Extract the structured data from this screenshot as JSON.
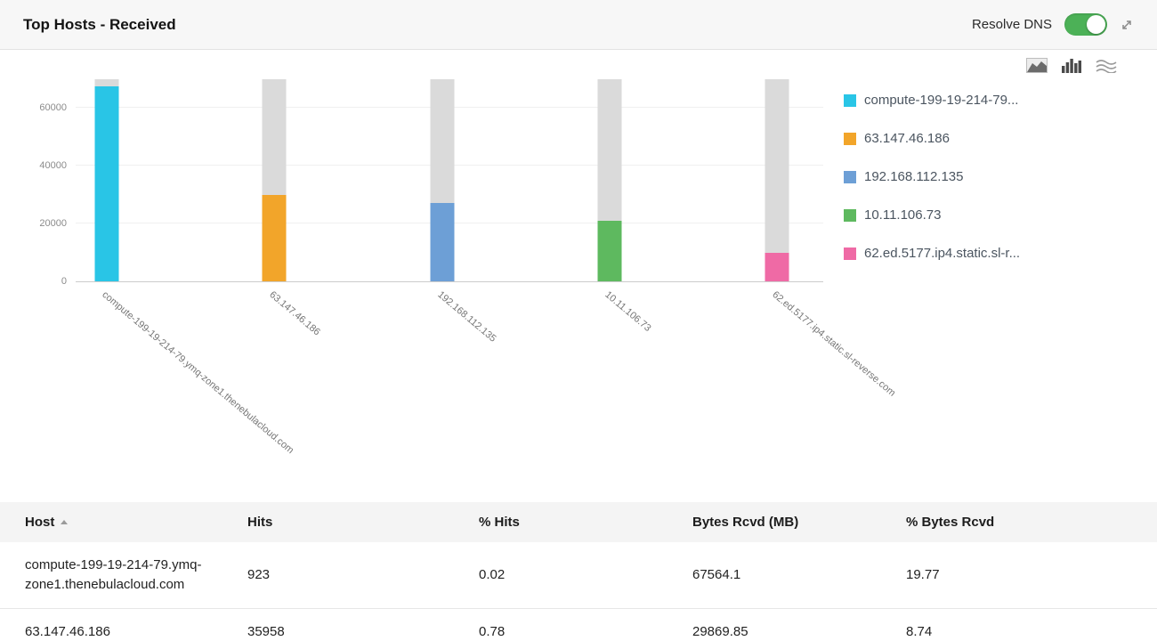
{
  "header": {
    "title": "Top Hosts - Received",
    "resolve_dns": {
      "label": "Resolve DNS",
      "state": "on"
    }
  },
  "icons": {
    "header": [
      "resolve-dns-toggle",
      "expand-icon"
    ],
    "chart_type_switcher": [
      "area-chart-icon",
      "bar-chart-icon",
      "stream-chart-icon"
    ]
  },
  "chart_data": {
    "type": "bar",
    "title": "Top Hosts - Received",
    "series_name": "Bytes Rcvd (MB)",
    "categories": [
      "compute-199-19-214-79.ymq-zone1.thenebulacloud.com",
      "63.147.46.186",
      "192.168.112.135",
      "10.11.106.73",
      "62.ed.5177.ip4.static.sl-reverse.com"
    ],
    "values": [
      67564.1,
      29869.85,
      27000,
      21000,
      10000
    ],
    "track_max": 70000,
    "ylim": [
      0,
      70000
    ],
    "yticks": [
      0,
      20000,
      40000,
      60000
    ],
    "grid": true,
    "legend_position": "right",
    "colors": [
      "#29c5e6",
      "#f2a52a",
      "#6d9fd6",
      "#5eb95f",
      "#ef6aa5"
    ],
    "track_color": "#dadada",
    "legend": [
      {
        "label": "compute-199-19-214-79...",
        "color": "#29c5e6"
      },
      {
        "label": "63.147.46.186",
        "color": "#f2a52a"
      },
      {
        "label": "192.168.112.135",
        "color": "#6d9fd6"
      },
      {
        "label": "10.11.106.73",
        "color": "#5eb95f"
      },
      {
        "label": "62.ed.5177.ip4.static.sl-r...",
        "color": "#ef6aa5"
      }
    ]
  },
  "table": {
    "columns": [
      {
        "label": "Host",
        "sorted": "asc"
      },
      {
        "label": "Hits"
      },
      {
        "label": "% Hits"
      },
      {
        "label": "Bytes Rcvd (MB)"
      },
      {
        "label": "% Bytes Rcvd"
      }
    ],
    "rows": [
      [
        "compute-199-19-214-79.ymq-zone1.thenebulacloud.com",
        "923",
        "0.02",
        "67564.1",
        "19.77"
      ],
      [
        "63.147.46.186",
        "35958",
        "0.78",
        "29869.85",
        "8.74"
      ]
    ]
  }
}
